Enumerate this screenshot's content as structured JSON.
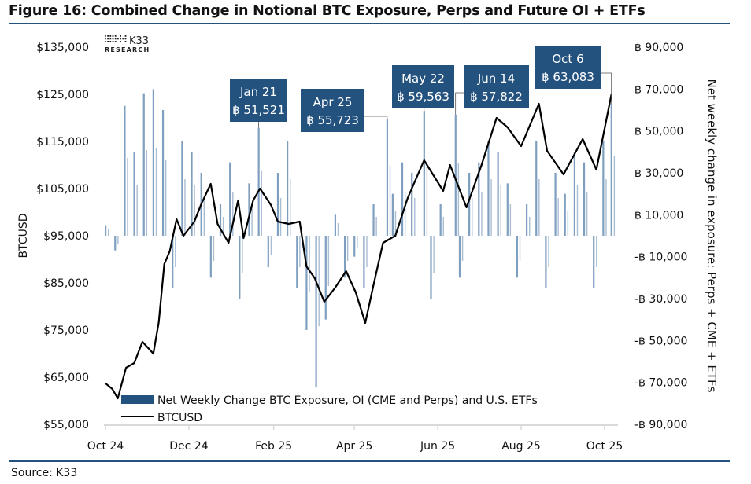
{
  "title": "Figure 16: Combined Change in Notional BTC Exposure, Perps and Future OI + ETFs",
  "source": "Source: K33",
  "logo": {
    "text": "K33",
    "subtext": "RESEARCH"
  },
  "colors": {
    "bars": "#7f9fc0",
    "line": "#000000",
    "annotation": "#24527f",
    "rule": "#24527f"
  },
  "chart_data": {
    "type": "bar+line",
    "ylabel_left": "BTCUSD",
    "ylabel_right": "Net weekly change in exposure: Perps + CME + ETFs",
    "ylim_left": [
      55000,
      135000
    ],
    "ylim_right": [
      -90000,
      90000
    ],
    "yticks_left": [
      "$55,000",
      "$65,000",
      "$75,000",
      "$85,000",
      "$95,000",
      "$105,000",
      "$115,000",
      "$125,000",
      "$135,000"
    ],
    "yticks_right": [
      "-฿ 90,000",
      "-฿ 70,000",
      "-฿ 50,000",
      "-฿ 30,000",
      "-฿ 10,000",
      "฿ 10,000",
      "฿ 30,000",
      "฿ 50,000",
      "฿ 70,000",
      "฿ 90,000"
    ],
    "xticks": [
      {
        "label": "Oct 24",
        "date": "2024-10-01"
      },
      {
        "label": "Dec 24",
        "date": "2024-12-01"
      },
      {
        "label": "Feb 25",
        "date": "2025-02-01"
      },
      {
        "label": "Apr 25",
        "date": "2025-04-01"
      },
      {
        "label": "Jun 25",
        "date": "2025-06-01"
      },
      {
        "label": "Aug 25",
        "date": "2025-08-01"
      },
      {
        "label": "Oct 25",
        "date": "2025-10-01"
      }
    ],
    "legend": [
      "Net Weekly Change BTC Exposure, OI (CME and Perps) and U.S. ETFs",
      "BTCUSD"
    ],
    "legend_placement": "bottom-left",
    "bars": {
      "dates": [
        "2024-10-01",
        "2024-10-08",
        "2024-10-15",
        "2024-10-22",
        "2024-10-29",
        "2024-11-05",
        "2024-11-12",
        "2024-11-19",
        "2024-11-26",
        "2024-12-03",
        "2024-12-10",
        "2024-12-17",
        "2024-12-24",
        "2024-12-31",
        "2025-01-07",
        "2025-01-14",
        "2025-01-21",
        "2025-01-28",
        "2025-02-04",
        "2025-02-11",
        "2025-02-18",
        "2025-02-25",
        "2025-03-04",
        "2025-03-11",
        "2025-03-18",
        "2025-03-25",
        "2025-04-01",
        "2025-04-08",
        "2025-04-15",
        "2025-04-25",
        "2025-04-29",
        "2025-05-06",
        "2025-05-13",
        "2025-05-22",
        "2025-05-27",
        "2025-06-03",
        "2025-06-14",
        "2025-06-17",
        "2025-06-24",
        "2025-07-01",
        "2025-07-08",
        "2025-07-15",
        "2025-07-22",
        "2025-07-29",
        "2025-08-05",
        "2025-08-12",
        "2025-08-19",
        "2025-08-26",
        "2025-09-02",
        "2025-09-09",
        "2025-09-16",
        "2025-09-23",
        "2025-09-30",
        "2025-10-06"
      ],
      "values": [
        5000,
        -7000,
        62000,
        40000,
        68000,
        70000,
        60000,
        -25000,
        45000,
        40000,
        30000,
        -20000,
        15000,
        35000,
        -30000,
        25000,
        51521,
        -15000,
        30000,
        45000,
        -25000,
        -45000,
        -72000,
        -40000,
        10000,
        -20000,
        -10000,
        -25000,
        15000,
        55723,
        20000,
        35000,
        30000,
        59563,
        -30000,
        15000,
        57822,
        -20000,
        30000,
        35000,
        45000,
        40000,
        25000,
        -20000,
        15000,
        45000,
        -25000,
        30000,
        20000,
        40000,
        35000,
        -25000,
        45000,
        63083
      ]
    },
    "line": {
      "dates": [
        "2024-10-01",
        "2024-10-06",
        "2024-10-10",
        "2024-10-16",
        "2024-10-22",
        "2024-10-28",
        "2024-11-05",
        "2024-11-09",
        "2024-11-13",
        "2024-11-17",
        "2024-11-22",
        "2024-11-27",
        "2024-12-05",
        "2024-12-10",
        "2024-12-17",
        "2024-12-22",
        "2024-12-30",
        "2025-01-06",
        "2025-01-10",
        "2025-01-17",
        "2025-01-22",
        "2025-01-30",
        "2025-02-04",
        "2025-02-12",
        "2025-02-20",
        "2025-02-25",
        "2025-03-03",
        "2025-03-10",
        "2025-03-18",
        "2025-03-26",
        "2025-04-02",
        "2025-04-09",
        "2025-04-15",
        "2025-04-22",
        "2025-05-01",
        "2025-05-10",
        "2025-05-22",
        "2025-06-05",
        "2025-06-10",
        "2025-06-22",
        "2025-07-03",
        "2025-07-14",
        "2025-07-22",
        "2025-08-01",
        "2025-08-14",
        "2025-08-20",
        "2025-09-01",
        "2025-09-15",
        "2025-09-25",
        "2025-10-06"
      ],
      "values": [
        63700,
        62500,
        60500,
        67000,
        68000,
        72500,
        70000,
        76700,
        89000,
        91700,
        98500,
        95000,
        98000,
        101700,
        106000,
        97500,
        93500,
        102500,
        94500,
        102500,
        105000,
        101500,
        98000,
        97500,
        98000,
        88500,
        86000,
        81000,
        84000,
        87500,
        83000,
        76500,
        84500,
        93500,
        95000,
        103000,
        111000,
        104500,
        110000,
        101000,
        110000,
        120000,
        118000,
        114000,
        123000,
        113000,
        108000,
        115500,
        109000,
        125000
      ]
    },
    "annotations": [
      {
        "date": "Jan 21",
        "value": "฿ 51,521",
        "target": "2025-01-21"
      },
      {
        "date": "Apr 25",
        "value": "฿ 55,723",
        "target": "2025-04-25"
      },
      {
        "date": "May 22",
        "value": "฿ 59,563",
        "target": "2025-05-22"
      },
      {
        "date": "Jun 14",
        "value": "฿ 57,822",
        "target": "2025-06-14"
      },
      {
        "date": "Oct 6",
        "value": "฿ 63,083",
        "target": "2025-10-06"
      }
    ]
  }
}
